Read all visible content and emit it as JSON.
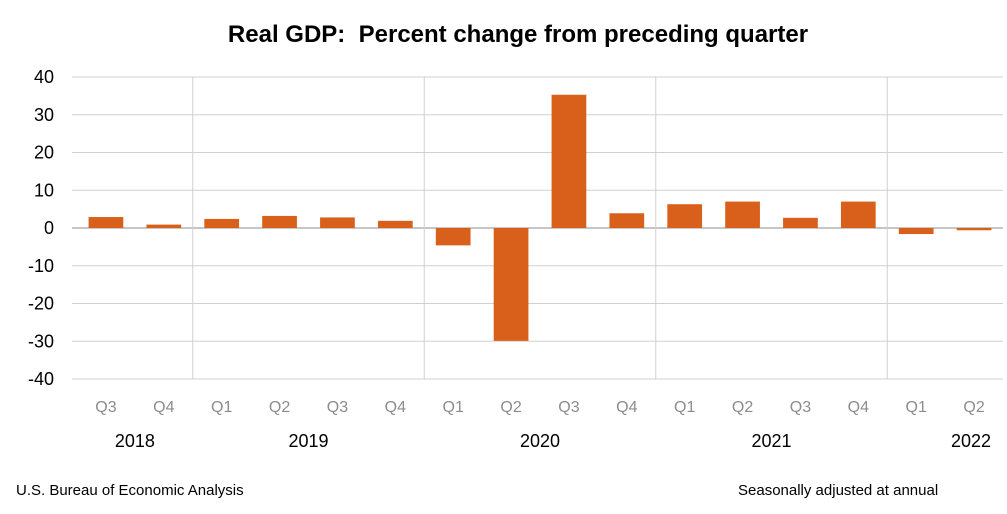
{
  "chart_data": {
    "type": "bar",
    "title": "Real GDP:  Percent change from preceding quarter",
    "xlabel": "",
    "ylabel": "",
    "ylim": [
      -40,
      40
    ],
    "yticks": [
      40,
      30,
      20,
      10,
      0,
      -10,
      -20,
      -30,
      -40
    ],
    "grid": true,
    "bar_color": "#d9601a",
    "categories": [
      "Q3",
      "Q4",
      "Q1",
      "Q2",
      "Q3",
      "Q4",
      "Q1",
      "Q2",
      "Q3",
      "Q4",
      "Q1",
      "Q2",
      "Q3",
      "Q4",
      "Q1",
      "Q2"
    ],
    "values": [
      2.9,
      0.9,
      2.4,
      3.2,
      2.8,
      1.9,
      -4.6,
      -29.9,
      35.3,
      3.9,
      6.3,
      7.0,
      2.7,
      7.0,
      -1.6,
      -0.6
    ],
    "years": [
      {
        "label": "2018",
        "start": 0,
        "end": 1
      },
      {
        "label": "2019",
        "start": 2,
        "end": 5
      },
      {
        "label": "2020",
        "start": 6,
        "end": 9
      },
      {
        "label": "2021",
        "start": 10,
        "end": 13
      },
      {
        "label": "2022",
        "start": 14,
        "end": 15
      }
    ]
  },
  "footer": {
    "source": "U.S. Bureau of Economic Analysis",
    "note": "Seasonally adjusted at annual"
  }
}
